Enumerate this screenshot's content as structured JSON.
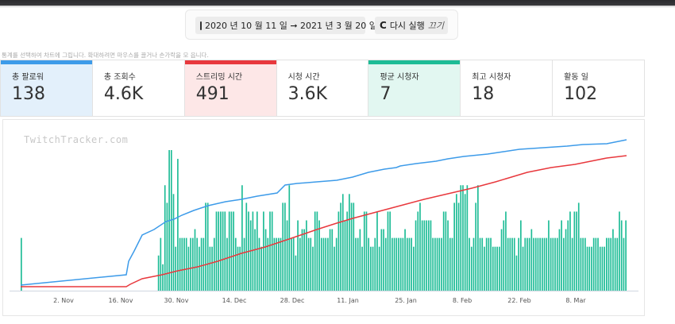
{
  "header": {
    "date_range": "2020 년 10 월 11 일 ➞ 2021 년 3 월 20 일",
    "rerun_label": "다시 실행",
    "rerun_off": "끄기",
    "hint": "통계를 선택하여 차트에 그립니다. 확대하려면 마우스를 끌거나 손가락을 모 읍니다."
  },
  "stats": [
    {
      "label": "총 팔로워",
      "value": "138",
      "accent": "#3d9be9",
      "state": "blue"
    },
    {
      "label": "총 조회수",
      "value": "4.6K",
      "accent": "",
      "state": ""
    },
    {
      "label": "스트리밍 시간",
      "value": "491",
      "accent": "#e8383d",
      "state": "red"
    },
    {
      "label": "시청 시간",
      "value": "3.6K",
      "accent": "",
      "state": ""
    },
    {
      "label": "평균 시청자",
      "value": "7",
      "accent": "#1dbc96",
      "state": "green"
    },
    {
      "label": "최고 시청자",
      "value": "18",
      "accent": "",
      "state": ""
    },
    {
      "label": "활동 일",
      "value": "102",
      "accent": "",
      "state": ""
    }
  ],
  "chart": {
    "watermark": "TwitchTracker.com",
    "colors": {
      "bars": "#1dbc96",
      "followers": "#3d9be9",
      "hours": "#e8383d"
    }
  },
  "chart_data": {
    "type": "bar",
    "x_tick_labels": [
      "2. Nov",
      "16. Nov",
      "30. Nov",
      "14. Dec",
      "28. Dec",
      "11. Jan",
      "25. Jan",
      "8. Feb",
      "22. Feb",
      "8. Mar"
    ],
    "bars_avg_viewers_relative": [
      6,
      0,
      0,
      0,
      0,
      0,
      0,
      0,
      0,
      0,
      0,
      0,
      0,
      0,
      0,
      0,
      0,
      0,
      0,
      0,
      0,
      0,
      0,
      0,
      0,
      0,
      0,
      0,
      0,
      0,
      0,
      0,
      0,
      0,
      0,
      0,
      0,
      0,
      0,
      0,
      0,
      0,
      0,
      0,
      0,
      0,
      0,
      0,
      0,
      0,
      0,
      0,
      0,
      0,
      0,
      0,
      0,
      0,
      0,
      0,
      0,
      0,
      0,
      0,
      4,
      6,
      3,
      12,
      10,
      16,
      16,
      11,
      5,
      15,
      6,
      6,
      6,
      6,
      5,
      6,
      6,
      7,
      6,
      5,
      6,
      6,
      10,
      10,
      5,
      5,
      6,
      9,
      9,
      9,
      9,
      9,
      6,
      9,
      9,
      9,
      6,
      5,
      5,
      12,
      6,
      10,
      9,
      8,
      9,
      7,
      9,
      6,
      5,
      9,
      7,
      6,
      9,
      9,
      6,
      6,
      6,
      6,
      10,
      10,
      8,
      12,
      6,
      6,
      4,
      8,
      6,
      7,
      7,
      8,
      6,
      6,
      5,
      9,
      9,
      8,
      6,
      6,
      6,
      6,
      7,
      7,
      5,
      6,
      9,
      10,
      11,
      8,
      9,
      11,
      10,
      10,
      6,
      6,
      7,
      5,
      9,
      9,
      6,
      5,
      5,
      6,
      9,
      5,
      7,
      7,
      6,
      9,
      9,
      6,
      6,
      6,
      6,
      6,
      6,
      7,
      6,
      6,
      6,
      5,
      8,
      9,
      10,
      8,
      8,
      8,
      8,
      8,
      6,
      6,
      6,
      6,
      6,
      9,
      9,
      8,
      6,
      6,
      10,
      11,
      10,
      12,
      12,
      11,
      12,
      6,
      5,
      6,
      10,
      12,
      6,
      6,
      5,
      6,
      6,
      6,
      5,
      5,
      5,
      5,
      7,
      8,
      9,
      6,
      6,
      6,
      6,
      4,
      6,
      8,
      5,
      6,
      6,
      6,
      7,
      6,
      6,
      6,
      6,
      6,
      6,
      6,
      8,
      6,
      6,
      6,
      6,
      7,
      8,
      6,
      7,
      8,
      9,
      6,
      9,
      9,
      10,
      6,
      6,
      6,
      5,
      5,
      5,
      6,
      6,
      6,
      5,
      5,
      5,
      6,
      6,
      6,
      7,
      6,
      6,
      9,
      8,
      6,
      8
    ],
    "series": [
      {
        "name": "총 팔로워",
        "color": "#3d9be9"
      },
      {
        "name": "스트리밍 시간",
        "color": "#e8383d"
      },
      {
        "name": "평균 시청자",
        "color": "#1dbc96"
      }
    ]
  }
}
